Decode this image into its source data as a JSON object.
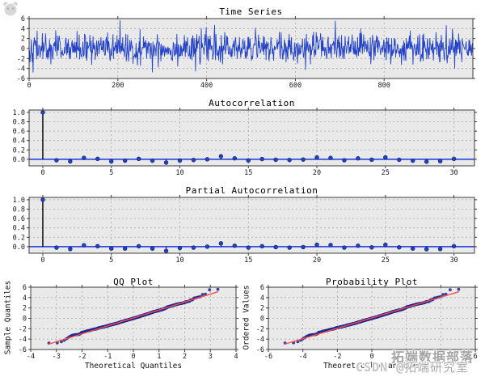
{
  "page": {
    "background": "#ffffff"
  },
  "colors": {
    "axes_bg": "#e9e9e9",
    "grid": "#a9a9a9",
    "frame": "#3c3c3c",
    "tick_text": "#1a1a1a",
    "series_blue": "#2342cb",
    "marker_blue": "#2340c8",
    "marker_edge": "#10245e",
    "stem_black": "#0d0d0d",
    "zero_line_blue": "#1a35e0",
    "qq_point": "#1b2a96",
    "fit_line_red": "#ff4a4a",
    "watermark_gray": "#a3a3a3"
  },
  "watermark": {
    "brand": "CSDN",
    "line1": "拓端数据部落",
    "line2_handle": "@拓端研究室",
    "logo": "paw-logo-icon"
  },
  "chart_data": [
    {
      "id": "time_series",
      "type": "line",
      "title": "Time Series",
      "xlim": [
        0,
        1000
      ],
      "ylim": [
        -6,
        6
      ],
      "xticks": [
        0,
        200,
        400,
        600,
        800
      ],
      "yticks": [
        6,
        4,
        2,
        0,
        -2,
        -4,
        -6
      ],
      "series_desc": "gaussian white noise, n=1000, mean 0, std ~1.45; peaks ~+5.6 near t=205 and t=690, dips ~-4.7 near t=278",
      "n": 1000,
      "seed": 42,
      "std": 1.45,
      "clip": 4.9,
      "spikes": [
        [
          205,
          5.6
        ],
        [
          690,
          5.5
        ],
        [
          418,
          4.65
        ],
        [
          940,
          4.6
        ],
        [
          278,
          -4.7
        ],
        [
          375,
          -4.5
        ],
        [
          60,
          3.6
        ],
        [
          510,
          4.1
        ]
      ]
    },
    {
      "id": "acf",
      "type": "stem",
      "title": "Autocorrelation",
      "xlim": [
        -1,
        31.5
      ],
      "ylim": [
        -0.14,
        1.05
      ],
      "xticks": [
        0,
        5,
        10,
        15,
        20,
        25,
        30
      ],
      "yticks": [
        "1.0",
        "0.8",
        "0.6",
        "0.4",
        "0.2",
        "0.0"
      ],
      "ytick_values": [
        1.0,
        0.8,
        0.6,
        0.4,
        0.2,
        0.0
      ],
      "values": [
        1.0,
        -0.02,
        -0.045,
        0.03,
        0.01,
        -0.045,
        -0.03,
        0.01,
        -0.03,
        -0.07,
        -0.025,
        -0.015,
        0.0,
        0.065,
        0.02,
        -0.025,
        0.005,
        -0.01,
        -0.015,
        -0.005,
        0.04,
        0.03,
        -0.02,
        0.02,
        -0.01,
        0.04,
        -0.01,
        -0.03,
        -0.05,
        -0.04,
        0.01
      ]
    },
    {
      "id": "pacf",
      "type": "stem",
      "title": "Partial Autocorrelation",
      "xlim": [
        -1,
        31.5
      ],
      "ylim": [
        -0.14,
        1.05
      ],
      "xticks": [
        0,
        5,
        10,
        15,
        20,
        25,
        30
      ],
      "yticks": [
        "1.0",
        "0.8",
        "0.6",
        "0.4",
        "0.2",
        "0.0"
      ],
      "ytick_values": [
        1.0,
        0.8,
        0.6,
        0.4,
        0.2,
        0.0
      ],
      "values": [
        1.0,
        -0.02,
        -0.05,
        0.03,
        0.01,
        -0.04,
        -0.04,
        0.01,
        -0.04,
        -0.09,
        -0.03,
        -0.02,
        0.0,
        0.07,
        0.02,
        -0.02,
        0.01,
        -0.01,
        -0.02,
        -0.01,
        0.04,
        0.035,
        -0.02,
        0.02,
        -0.015,
        0.04,
        -0.015,
        -0.04,
        -0.055,
        -0.05,
        0.01
      ]
    },
    {
      "id": "qq",
      "type": "scatter",
      "title": "QQ Plot",
      "xlabel": "Theoretical Quantiles",
      "ylabel": "Sample Quantiles",
      "xlim": [
        -4,
        4
      ],
      "ylim": [
        -6,
        6
      ],
      "xticks": [
        -4,
        -3,
        -2,
        -1,
        0,
        1,
        2,
        3,
        4
      ],
      "yticks": [
        6,
        4,
        2,
        0,
        -2,
        -4,
        -6
      ],
      "points_desc": "sorted sample vs normal quantiles, band from (-3.1,-4.7) to (3.1,5.6)",
      "fit_line": {
        "slope": 1.53,
        "intercept": 0.08,
        "x_range": [
          -3.3,
          3.3
        ]
      }
    },
    {
      "id": "probability",
      "type": "scatter",
      "title": "Probability Plot",
      "xlabel": "Theoretical quantiles",
      "ylabel": "Ordered Values",
      "xlim": [
        -6,
        6
      ],
      "ylim": [
        -6,
        6
      ],
      "xticks": [
        -6,
        -4,
        -2,
        0,
        2,
        4,
        6
      ],
      "yticks": [
        6,
        4,
        2,
        0,
        -2,
        -4,
        -6
      ],
      "x_scale": 1.53,
      "points_desc": "same sorted sample, band from (-4.9,-4.7) to (5.0,5.6)",
      "fit_line": {
        "slope": 1.0,
        "intercept": 0.08,
        "x_range": [
          -5.05,
          5.05
        ]
      }
    }
  ]
}
